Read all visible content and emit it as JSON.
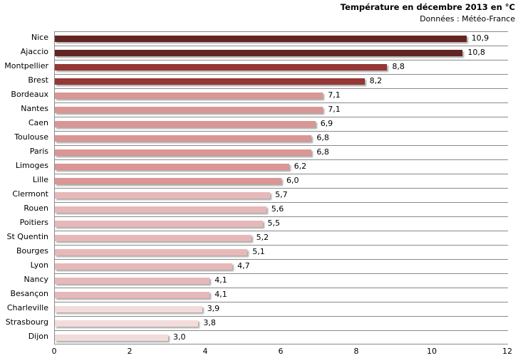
{
  "chart_data": {
    "type": "bar",
    "orientation": "horizontal",
    "title": "Température en décembre 2013 en °C",
    "subtitle": "Données : Météo-France",
    "xlabel": "",
    "ylabel": "",
    "xlim": [
      0,
      12
    ],
    "x_ticks": [
      "0",
      "2",
      "4",
      "6",
      "8",
      "10",
      "12"
    ],
    "grid": "horizontal",
    "legend": "none",
    "categories": [
      "Nice",
      "Ajaccio",
      "Montpellier",
      "Brest",
      "Bordeaux",
      "Nantes",
      "Caen",
      "Toulouse",
      "Paris",
      "Limoges",
      "Lille",
      "Clermont",
      "Rouen",
      "Poitiers",
      "St Quentin",
      "Bourges",
      "Lyon",
      "Nancy",
      "Besançon",
      "Charleville",
      "Strasbourg",
      "Dijon"
    ],
    "values": [
      10.9,
      10.8,
      8.8,
      8.2,
      7.1,
      7.1,
      6.9,
      6.8,
      6.8,
      6.2,
      6.0,
      5.7,
      5.6,
      5.5,
      5.2,
      5.1,
      4.7,
      4.1,
      4.1,
      3.9,
      3.8,
      3.0
    ],
    "value_labels": [
      "10,9",
      "10,8",
      "8,8",
      "8,2",
      "7,1",
      "7,1",
      "6,9",
      "6,8",
      "6,8",
      "6,2",
      "6,0",
      "5,7",
      "5,6",
      "5,5",
      "5,2",
      "5,1",
      "4,7",
      "4,1",
      "4,1",
      "3,9",
      "3,8",
      "3,0"
    ],
    "colors": [
      "#632523",
      "#632523",
      "#953735",
      "#953735",
      "#d99694",
      "#d99694",
      "#d99694",
      "#d99694",
      "#d99694",
      "#d99694",
      "#d99694",
      "#e6b9b8",
      "#e6b9b8",
      "#e6b9b8",
      "#e6b9b8",
      "#e6b9b8",
      "#e6b9b8",
      "#e6b9b8",
      "#e6b9b8",
      "#f2dcdb",
      "#f2dcdb",
      "#f2dcdb"
    ]
  }
}
